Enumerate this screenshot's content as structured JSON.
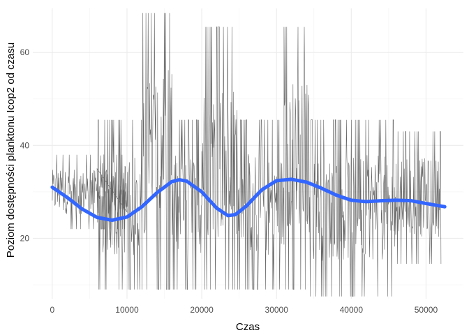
{
  "chart_data": {
    "type": "line",
    "title": "",
    "xlabel": "Czas",
    "ylabel": "Poziom dostępności planktonu Icop2 od czasu",
    "xlim": [
      -2600,
      55000
    ],
    "ylim": [
      7,
      69.5
    ],
    "x_ticks": [
      0,
      10000,
      20000,
      30000,
      40000,
      50000
    ],
    "x_tick_labels": [
      "0",
      "10000",
      "20000",
      "30000",
      "40000",
      "50000"
    ],
    "y_ticks": [
      20,
      40,
      60
    ],
    "y_tick_labels": [
      "20",
      "40",
      "60"
    ],
    "grid": true,
    "legend": "none",
    "series": [
      {
        "role": "raw",
        "color": "#000000",
        "opacity": 0.6,
        "segments": [
          {
            "x_from": 0,
            "x_to": 10000,
            "y_min": 22,
            "y_max": 38
          },
          {
            "x_from": 6000,
            "x_to": 12000,
            "y_min": 9,
            "y_max": 45.5
          },
          {
            "x_from": 12000,
            "x_to": 16000,
            "y_min": 9,
            "y_max": 68.5
          },
          {
            "x_from": 16000,
            "x_to": 20000,
            "y_min": 9,
            "y_max": 45.5
          },
          {
            "x_from": 20000,
            "x_to": 25000,
            "y_min": 9,
            "y_max": 65.5
          },
          {
            "x_from": 25000,
            "x_to": 31000,
            "y_min": 9,
            "y_max": 45.5
          },
          {
            "x_from": 31000,
            "x_to": 34500,
            "y_min": 9,
            "y_max": 65.5
          },
          {
            "x_from": 34500,
            "x_to": 46000,
            "y_min": 7.5,
            "y_max": 45.5
          },
          {
            "x_from": 46000,
            "x_to": 52000,
            "y_min": 14.5,
            "y_max": 43
          }
        ]
      },
      {
        "role": "smooth",
        "color": "#3366FF",
        "x": [
          0,
          2000,
          4000,
          6000,
          8000,
          10000,
          12000,
          14000,
          16000,
          17000,
          18000,
          20000,
          22000,
          23500,
          24500,
          26000,
          28000,
          30000,
          32000,
          34000,
          36000,
          38000,
          40000,
          42000,
          44000,
          46000,
          48000,
          50000,
          52500
        ],
        "y": [
          31,
          28.8,
          26.3,
          24.5,
          23.9,
          24.6,
          26.8,
          29.8,
          32.2,
          32.6,
          32.3,
          30,
          26.5,
          24.9,
          25.1,
          27,
          30.4,
          32.4,
          32.7,
          32.1,
          30.8,
          29.3,
          28.2,
          27.9,
          28.1,
          28.2,
          28.1,
          27.5,
          26.8
        ]
      }
    ]
  }
}
